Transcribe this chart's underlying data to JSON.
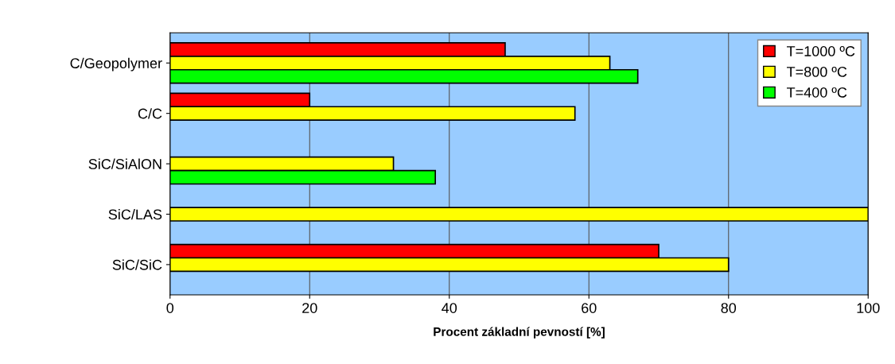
{
  "chart_data": {
    "type": "bar",
    "orientation": "horizontal",
    "xlabel": "Procent základní pevností [%]",
    "categories": [
      "C/Geopolymer",
      "C/C",
      "SiC/SiAlON",
      "SiC/LAS",
      "SiC/SiC"
    ],
    "series": [
      {
        "name": "T=1000 ºC",
        "color": "#ff0000",
        "values": [
          48,
          20,
          null,
          null,
          70
        ]
      },
      {
        "name": "T=800 ºC",
        "color": "#ffff00",
        "values": [
          63,
          58,
          32,
          100,
          80
        ]
      },
      {
        "name": "T=400 ºC",
        "color": "#00ff00",
        "values": [
          67,
          null,
          38,
          null,
          null
        ]
      }
    ],
    "xlim": [
      0,
      100
    ],
    "xticks": [
      0,
      20,
      40,
      60,
      80,
      100
    ],
    "grid": "x",
    "legend": "top right"
  }
}
